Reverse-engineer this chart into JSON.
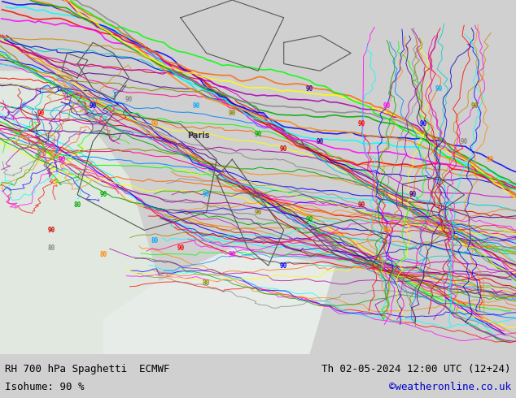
{
  "title_left_line1": "RH 700 hPa Spaghetti  ECMWF",
  "title_left_line2": "Isohume: 90 %",
  "title_right_line1": "Th 02-05-2024 12:00 UTC (12+24)",
  "title_right_line2": "©weatheronline.co.uk",
  "title_right_line2_color": "#0000cc",
  "background_color": "#ccff99",
  "land_color": "#ccff99",
  "sea_color": "#e8e8e8",
  "footer_bg": "#d0d0d0",
  "text_color": "#000000",
  "font_size": 10,
  "fig_width": 6.34,
  "fig_height": 4.9,
  "dpi": 100
}
